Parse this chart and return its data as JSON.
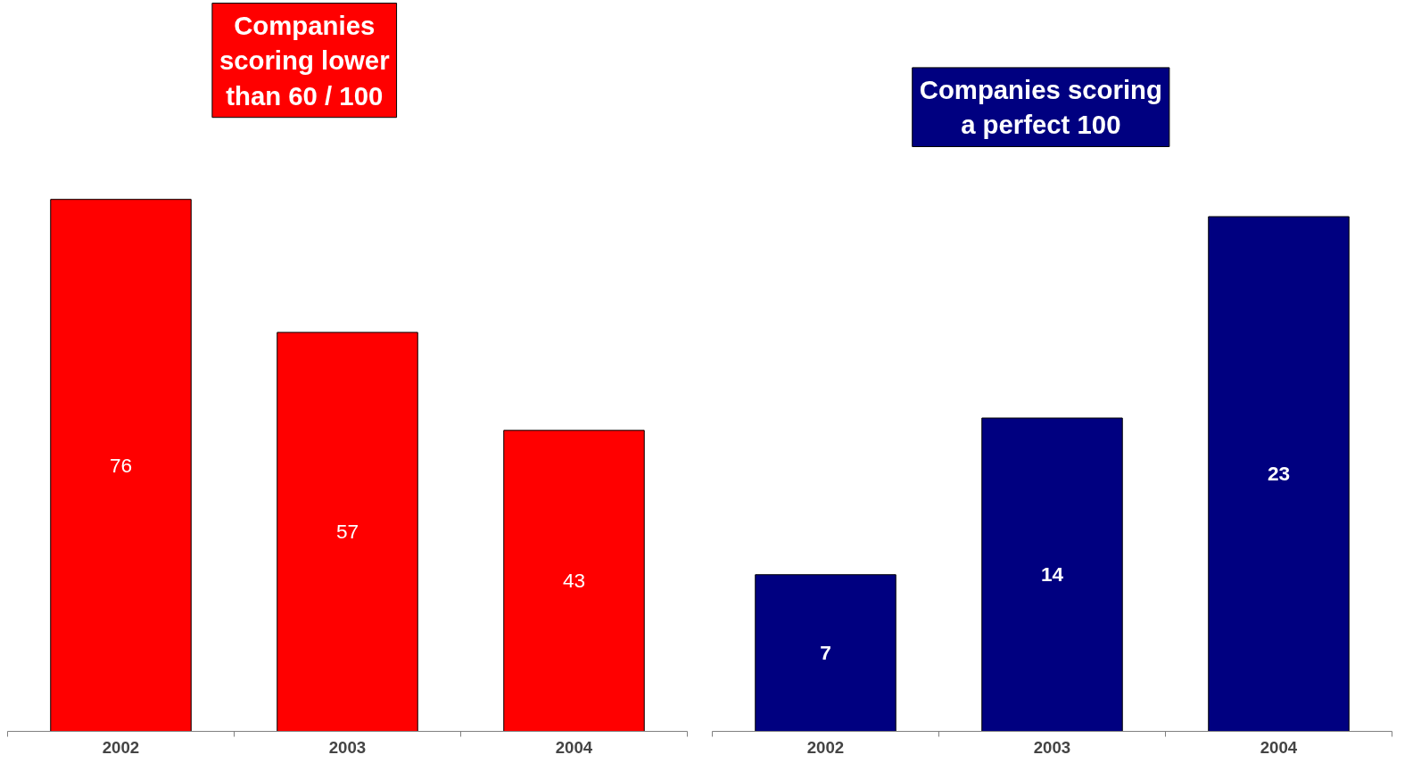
{
  "chart_data": [
    {
      "type": "bar",
      "title": "Companies\nscoring lower\nthan 60 / 100",
      "categories": [
        "2002",
        "2003",
        "2004"
      ],
      "series": [
        {
          "color": "#ff0000",
          "values": [
            76,
            57,
            43
          ]
        }
      ],
      "data_labels": true,
      "tick_labels": "x"
    },
    {
      "type": "bar",
      "title": "Companies scoring\na perfect 100",
      "categories": [
        "2002",
        "2003",
        "2004"
      ],
      "series": [
        {
          "color": "#000080",
          "values": [
            7,
            14,
            23
          ]
        }
      ],
      "data_labels": true,
      "tick_labels": "x"
    }
  ]
}
